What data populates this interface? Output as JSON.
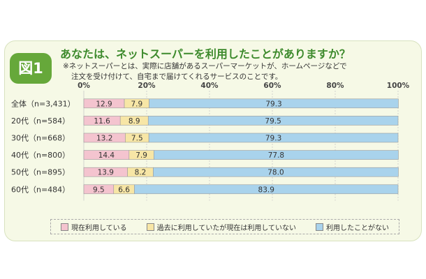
{
  "figure": {
    "badge": "図1",
    "title": "あなたは、ネットスーパーを利用したことがありますか？",
    "note_line1": "※ネットスーパーとは、実際に店舗があるスーパーマーケットが、ホームページなどで",
    "note_line2": "注文を受け付けて、自宅まで届けてくれるサービスのことです。"
  },
  "colors": {
    "current": "#f4c4cf",
    "past": "#f7e6a6",
    "never": "#a9d3ec",
    "accent": "#66a83a",
    "title": "#3d8a2c"
  },
  "chart_data": {
    "type": "bar",
    "orientation": "horizontal",
    "stacked": true,
    "categories": [
      "全体（n=3,431）",
      "20代（n=584）",
      "30代（n=668）",
      "40代（n=800）",
      "50代（n=895）",
      "60代（n=484）"
    ],
    "series": [
      {
        "name": "現在利用している",
        "values": [
          12.9,
          11.6,
          13.2,
          14.4,
          13.9,
          9.5
        ]
      },
      {
        "name": "過去に利用していたが現在は利用していない",
        "values": [
          7.9,
          8.9,
          7.5,
          7.9,
          8.2,
          6.6
        ]
      },
      {
        "name": "利用したことがない",
        "values": [
          79.3,
          79.5,
          79.3,
          77.8,
          78.0,
          83.9
        ]
      }
    ],
    "xlim": [
      0,
      100
    ],
    "x_ticks": [
      "0%",
      "20%",
      "40%",
      "60%",
      "80%",
      "100%"
    ],
    "grid": true,
    "legend_position": "bottom"
  }
}
